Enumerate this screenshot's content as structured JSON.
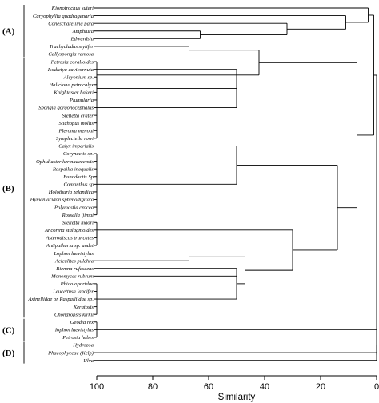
{
  "chart_data": {
    "type": "dendrogram",
    "xlabel": "Similarity",
    "xlim": [
      100,
      0
    ],
    "xticks": [
      100,
      80,
      60,
      40,
      20,
      0
    ],
    "leaves": [
      "Kionotrochus suteri",
      "Caryophyllia quadragenaria",
      "Coneschareliina pala",
      "Amphiura",
      "Edwardsia",
      "Trachycladus stylifer",
      "Callyspongia ramosa",
      "Petrosia coralloides",
      "Isodictya cavicornuta",
      "Alcyonium sp.",
      "Haliclona petrocalyx",
      "Knightaster bakeri",
      "Plumularia",
      "Spongia gorgonocephalus",
      "Stelletta crater",
      "Stichopus mollis",
      "Pleroma menoui",
      "Symplectella rowi",
      "Calyx imperialis",
      "Corynactis sp.",
      "Ophidiaster kermadecensis",
      "Raspailia inequalis",
      "Bunodactis Sp",
      "Comanthus sp",
      "Holothuria zelandica",
      "Hymeniacidon sphenodigitata",
      "Polymastia crocea",
      "Rossella ijimai",
      "Stelletta maori",
      "Ancorina stalagmoides",
      "Asterodiscus truncates",
      "Antipatharia sp. undet",
      "Lophon laevistylus",
      "Aciculites pulchra",
      "Biemna rufescens",
      "Monomyces rubrum",
      "Phidoloporidae",
      "Leucettusa lancifer",
      "Axinellidae or Raspailiidae sp.",
      "Keratosis",
      "Chondropsis kirkii",
      "Geodia rex",
      "Iophon laevistylus",
      "Petrosia hebes",
      "Hydrozoa",
      "Phaeophyceae (Kelp)",
      "Ulva"
    ],
    "groups": [
      {
        "label": "(A)",
        "first_leaf": 0,
        "last_leaf": 6
      },
      {
        "label": "(B)",
        "first_leaf": 7,
        "last_leaf": 40
      },
      {
        "label": "(C)",
        "first_leaf": 41,
        "last_leaf": 43
      },
      {
        "label": "(D)",
        "first_leaf": 44,
        "last_leaf": 46
      }
    ],
    "merges": [
      {
        "id": "m1",
        "members": [
          3,
          4
        ],
        "similarity": 63
      },
      {
        "id": "m2",
        "members": [
          2,
          "m1"
        ],
        "similarity": 32
      },
      {
        "id": "m3",
        "members": [
          1,
          "m2"
        ],
        "similarity": 11
      },
      {
        "id": "m4",
        "members": [
          0,
          "m3"
        ],
        "similarity": 3
      },
      {
        "id": "m5",
        "members": [
          5,
          6
        ],
        "similarity": 67
      },
      {
        "id": "m6",
        "members": [
          9,
          10,
          11,
          12,
          13,
          14,
          15,
          16,
          17
        ],
        "similarity": 100
      },
      {
        "id": "m7",
        "members": [
          8,
          "m6"
        ],
        "similarity": 50
      },
      {
        "id": "m8",
        "members": [
          7,
          "m7"
        ],
        "similarity": 100
      },
      {
        "id": "m9",
        "members": [
          "m5",
          "m8"
        ],
        "similarity": 42
      },
      {
        "id": "m10",
        "members": [
          19,
          20,
          21,
          22,
          23,
          24,
          25,
          26,
          27
        ],
        "similarity": 100
      },
      {
        "id": "m11",
        "members": [
          18,
          "m10"
        ],
        "similarity": 50
      },
      {
        "id": "m12",
        "members": [
          29,
          30,
          31
        ],
        "similarity": 100
      },
      {
        "id": "m13",
        "members": [
          28,
          "m12"
        ],
        "similarity": 100
      },
      {
        "id": "m14",
        "members": [
          32,
          33
        ],
        "similarity": 67
      },
      {
        "id": "m15",
        "members": [
          36,
          37,
          38,
          39,
          40
        ],
        "similarity": 100
      },
      {
        "id": "m16",
        "members": [
          34,
          35,
          "m15"
        ],
        "similarity": 50
      },
      {
        "id": "m17",
        "members": [
          "m14",
          "m16"
        ],
        "similarity": 47
      },
      {
        "id": "m18",
        "members": [
          "m13",
          "m17"
        ],
        "similarity": 30
      },
      {
        "id": "m19",
        "members": [
          "m11",
          "m18"
        ],
        "similarity": 14
      },
      {
        "id": "m20",
        "members": [
          "m9",
          "m19"
        ],
        "similarity": 7
      },
      {
        "id": "m21",
        "members": [
          "m4",
          "m20"
        ],
        "similarity": 1
      },
      {
        "id": "m22",
        "members": [
          41,
          42,
          43
        ],
        "similarity": 100
      },
      {
        "id": "m23",
        "members": [
          44,
          45
        ],
        "similarity": 0
      },
      {
        "id": "m24",
        "members": [
          "m23",
          46
        ],
        "similarity": 0
      },
      {
        "id": "m25",
        "members": [
          "m21",
          "m22",
          "m24"
        ],
        "similarity": 0
      }
    ]
  }
}
